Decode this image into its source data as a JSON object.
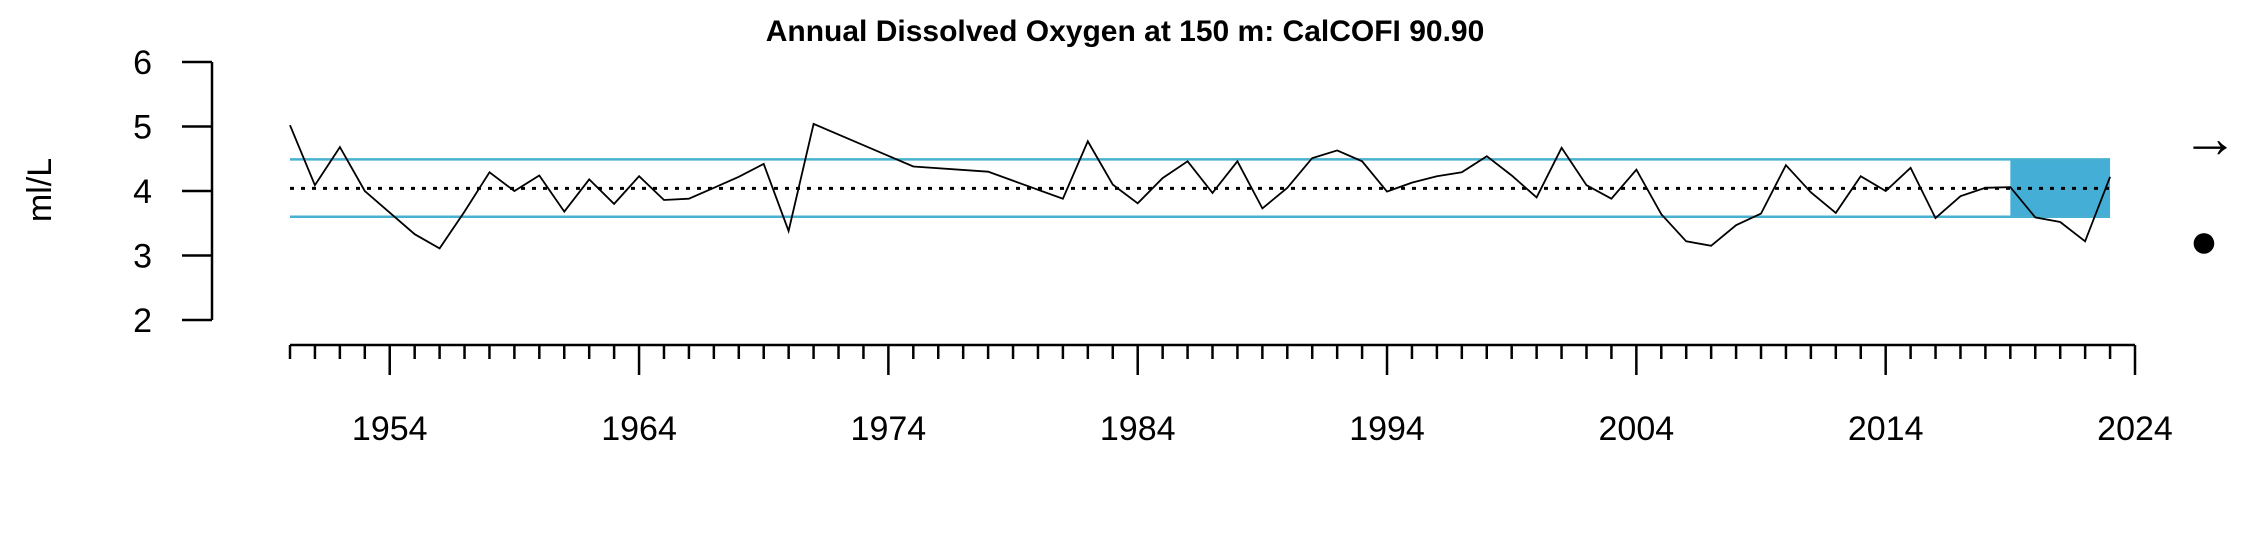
{
  "chart_data": {
    "type": "line",
    "title": "Annual Dissolved Oxygen at 150 m: CalCOFI 90.90",
    "xlabel": "",
    "ylabel": "ml/L",
    "xlim": [
      1950,
      2024
    ],
    "ylim": [
      2,
      6
    ],
    "x_tick_labels": [
      "1954",
      "1964",
      "1974",
      "1984",
      "1994",
      "2004",
      "2014",
      "2024"
    ],
    "y_tick_labels": [
      "2",
      "3",
      "4",
      "5",
      "6"
    ],
    "mean": 4.04,
    "upper_sd": 4.49,
    "lower_sd": 3.6,
    "recent_window": [
      2019,
      2023
    ],
    "trend_symbol": "→",
    "recent_mean_symbol": "●",
    "colors": {
      "line": "#000000",
      "sd_lines": "#48b0d0",
      "recent_shade": "#44aed6"
    },
    "series": [
      {
        "x": [
          1950,
          1951,
          1952,
          1953,
          1955,
          1956,
          1957,
          1958,
          1959,
          1960,
          1961,
          1962,
          1963,
          1964,
          1965,
          1966,
          1967,
          1968,
          1969,
          1970,
          1971,
          1975,
          1978,
          1981,
          1982,
          1983,
          1984,
          1985,
          1986,
          1987,
          1988,
          1989,
          1990,
          1991,
          1992,
          1993,
          1994,
          1995,
          1996,
          1997,
          1998,
          1999,
          2000,
          2001,
          2002,
          2003,
          2004,
          2005,
          2006,
          2007,
          2008,
          2009,
          2010,
          2011,
          2012,
          2013,
          2014,
          2015,
          2016,
          2017,
          2018,
          2019,
          2020,
          2021,
          2022,
          2023
        ],
        "y": [
          5.02,
          4.09,
          4.68,
          4.0,
          3.33,
          3.11,
          3.68,
          4.29,
          4.0,
          4.24,
          3.68,
          4.18,
          3.8,
          4.23,
          3.86,
          3.88,
          4.05,
          4.22,
          4.42,
          3.38,
          5.04,
          4.38,
          4.3,
          3.88,
          4.77,
          4.1,
          3.81,
          4.2,
          4.46,
          3.97,
          4.46,
          3.73,
          4.05,
          4.51,
          4.63,
          4.46,
          3.99,
          4.13,
          4.23,
          4.29,
          4.54,
          4.24,
          3.9,
          4.67,
          4.09,
          3.88,
          4.33,
          3.64,
          3.22,
          3.15,
          3.47,
          3.65,
          4.4,
          3.98,
          3.66,
          4.23,
          4.0,
          4.36,
          3.58,
          3.92,
          4.05,
          4.06,
          3.59,
          3.52,
          3.22,
          4.22
        ]
      }
    ]
  }
}
